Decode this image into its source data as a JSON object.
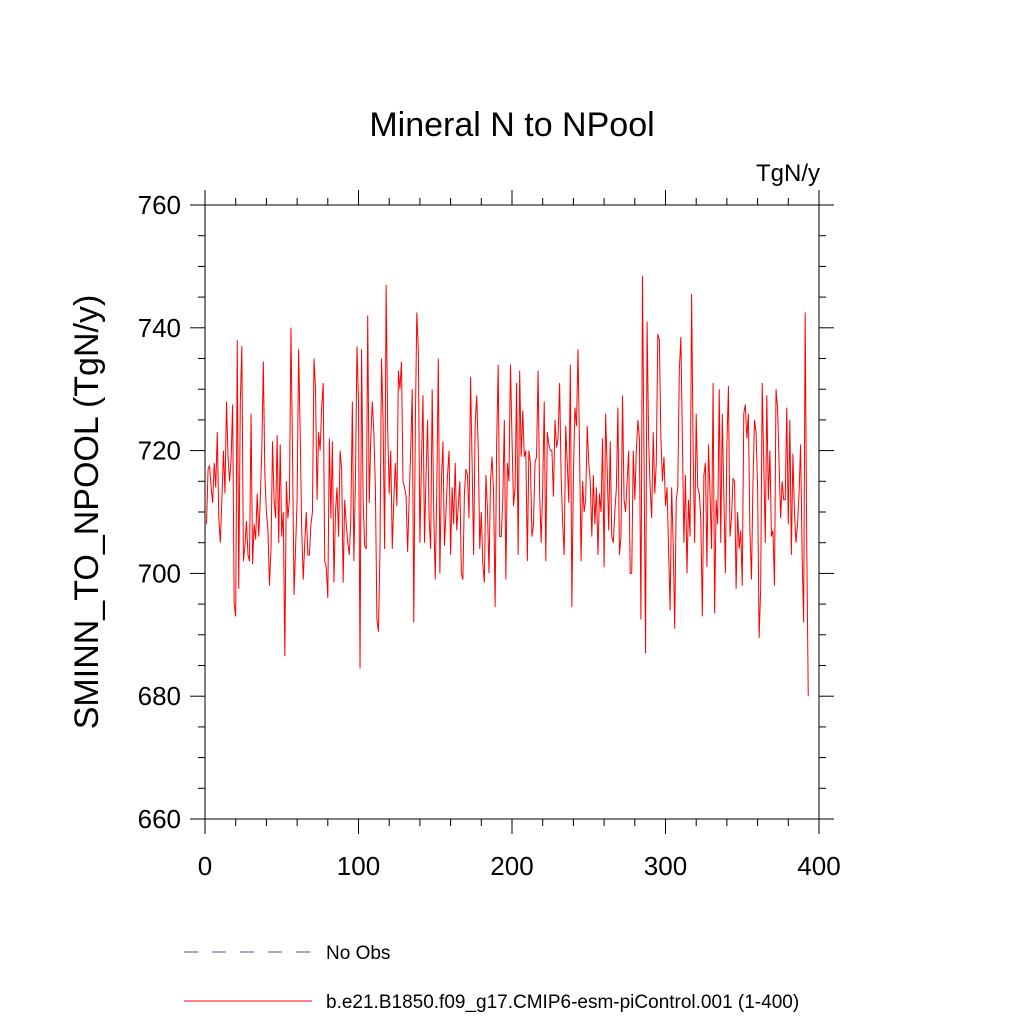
{
  "chart_data": {
    "type": "line",
    "title": "Mineral N to NPool",
    "units_label": "TgN/y",
    "ylabel": "SMINN_TO_NPOOL  (TgN/y)",
    "xlabel": "",
    "xlim": [
      0,
      400
    ],
    "ylim": [
      660,
      760
    ],
    "x_ticks": [
      0,
      100,
      200,
      300,
      400
    ],
    "y_ticks": [
      660,
      680,
      700,
      720,
      740,
      760
    ],
    "x_tick_labels": [
      "0",
      "100",
      "200",
      "300",
      "400"
    ],
    "y_tick_labels": [
      "660",
      "680",
      "700",
      "720",
      "740",
      "760"
    ],
    "legend": [
      {
        "label": "No Obs",
        "color": "#7b6fb8",
        "style": "dashed"
      },
      {
        "label": "b.e21.B1850.f09_g17.CMIP6-esm-piControl.001 (1-400)",
        "color": "#ff0000",
        "style": "solid"
      }
    ],
    "series": [
      {
        "name": "b.e21.B1850.f09_g17.CMIP6-esm-piControl.001 (1-400)",
        "color": "#ff0000",
        "x_start": 1,
        "x_step": 1,
        "values": [
          708.0,
          717.0,
          717.5,
          714.0,
          711.5,
          718.0,
          714.0,
          723.0,
          709.0,
          705.0,
          712.0,
          720.0,
          713.0,
          728.0,
          719.0,
          715.0,
          718.5,
          727.5,
          695.0,
          693.0,
          738.0,
          697.5,
          728.0,
          737.0,
          702.0,
          704.5,
          708.5,
          703.0,
          702.0,
          726.0,
          701.5,
          708.0,
          705.5,
          713.0,
          706.0,
          712.0,
          720.0,
          734.5,
          716.0,
          710.0,
          707.0,
          698.0,
          704.0,
          721.5,
          712.0,
          709.0,
          722.5,
          705.0,
          721.0,
          706.0,
          710.0,
          686.5,
          715.0,
          709.0,
          712.0,
          740.0,
          720.0,
          696.5,
          704.0,
          712.0,
          736.5,
          723.0,
          707.0,
          699.0,
          705.0,
          710.0,
          703.0,
          703.0,
          708.0,
          710.0,
          735.0,
          730.0,
          712.0,
          723.0,
          720.0,
          727.0,
          731.0,
          702.0,
          701.0,
          696.0,
          722.0,
          709.0,
          721.5,
          698.5,
          710.0,
          714.0,
          706.0,
          720.0,
          717.0,
          698.5,
          712.0,
          708.0,
          705.0,
          703.0,
          709.0,
          728.0,
          702.0,
          715.0,
          737.0,
          728.0,
          684.5,
          736.5,
          712.0,
          704.5,
          704.0,
          742.0,
          711.5,
          722.0,
          728.0,
          723.0,
          714.0,
          692.5,
          690.5,
          704.0,
          735.0,
          725.0,
          704.0,
          747.0,
          724.0,
          713.0,
          720.0,
          704.0,
          712.0,
          718.0,
          711.0,
          733.0,
          730.0,
          734.5,
          715.0,
          714.0,
          712.5,
          703.5,
          712.0,
          720.0,
          730.0,
          692.0,
          724.0,
          742.5,
          736.0,
          705.0,
          718.0,
          729.0,
          705.0,
          716.0,
          725.0,
          709.0,
          704.0,
          730.0,
          710.0,
          699.0,
          713.5,
          735.0,
          700.0,
          715.0,
          721.5,
          704.5,
          710.0,
          716.0,
          720.0,
          703.0,
          714.0,
          708.0,
          718.0,
          707.0,
          711.0,
          715.0,
          700.0,
          699.0,
          713.0,
          717.0,
          716.0,
          709.0,
          732.0,
          718.0,
          703.0,
          724.0,
          729.0,
          720.5,
          704.0,
          710.0,
          701.5,
          698.5,
          716.0,
          710.5,
          700.0,
          715.0,
          719.0,
          713.0,
          694.5,
          721.0,
          734.0,
          706.0,
          706.0,
          712.0,
          725.0,
          699.0,
          718.0,
          715.0,
          734.0,
          722.0,
          711.0,
          714.0,
          731.0,
          703.0,
          733.0,
          719.0,
          726.5,
          719.0,
          720.0,
          702.0,
          720.0,
          718.0,
          706.0,
          708.0,
          718.0,
          719.0,
          733.0,
          713.0,
          705.0,
          714.0,
          728.0,
          702.0,
          723.0,
          721.0,
          720.0,
          720.0,
          712.5,
          725.0,
          720.5,
          722.0,
          731.0,
          716.0,
          708.0,
          703.0,
          724.0,
          718.0,
          711.5,
          734.0,
          694.5,
          716.0,
          727.0,
          724.0,
          736.5,
          720.0,
          702.0,
          715.0,
          710.0,
          712.0,
          724.0,
          718.0,
          715.0,
          706.0,
          716.0,
          708.0,
          714.0,
          703.0,
          713.0,
          710.0,
          722.0,
          701.0,
          726.0,
          717.0,
          707.0,
          721.5,
          706.0,
          705.0,
          710.0,
          714.0,
          727.0,
          703.0,
          706.0,
          729.0,
          712.0,
          710.0,
          715.0,
          720.0,
          700.0,
          700.0,
          720.0,
          712.0,
          720.0,
          725.0,
          722.0,
          692.5,
          748.5,
          719.0,
          687.0,
          741.0,
          722.0,
          714.0,
          709.0,
          723.0,
          713.0,
          718.0,
          739.0,
          738.0,
          722.0,
          715.0,
          719.0,
          711.0,
          714.0,
          704.0,
          694.0,
          714.0,
          705.0,
          691.0,
          712.0,
          714.0,
          733.0,
          738.5,
          722.0,
          705.0,
          716.0,
          700.0,
          712.0,
          706.0,
          745.5,
          720.0,
          705.0,
          726.0,
          714.0,
          713.0,
          709.0,
          693.0,
          716.0,
          718.0,
          701.0,
          721.0,
          713.0,
          704.0,
          731.0,
          693.5,
          712.0,
          708.0,
          730.0,
          705.0,
          726.0,
          713.0,
          700.0,
          721.0,
          730.5,
          706.0,
          709.0,
          715.5,
          715.0,
          697.5,
          710.0,
          704.0,
          707.0,
          698.0,
          726.0,
          727.5,
          722.0,
          726.0,
          707.0,
          699.0,
          715.0,
          725.0,
          723.0,
          714.0,
          689.5,
          697.5,
          731.0,
          718.0,
          705.0,
          729.0,
          712.0,
          720.0,
          706.0,
          707.0,
          698.0,
          730.0,
          727.0,
          718.0,
          709.0,
          715.0,
          712.0,
          712.0,
          727.0,
          708.0,
          725.0,
          703.0,
          719.5,
          710.0,
          705.0,
          708.0,
          713.0,
          721.0,
          703.0,
          692.0,
          742.5,
          705.0,
          680.0
        ]
      }
    ]
  }
}
